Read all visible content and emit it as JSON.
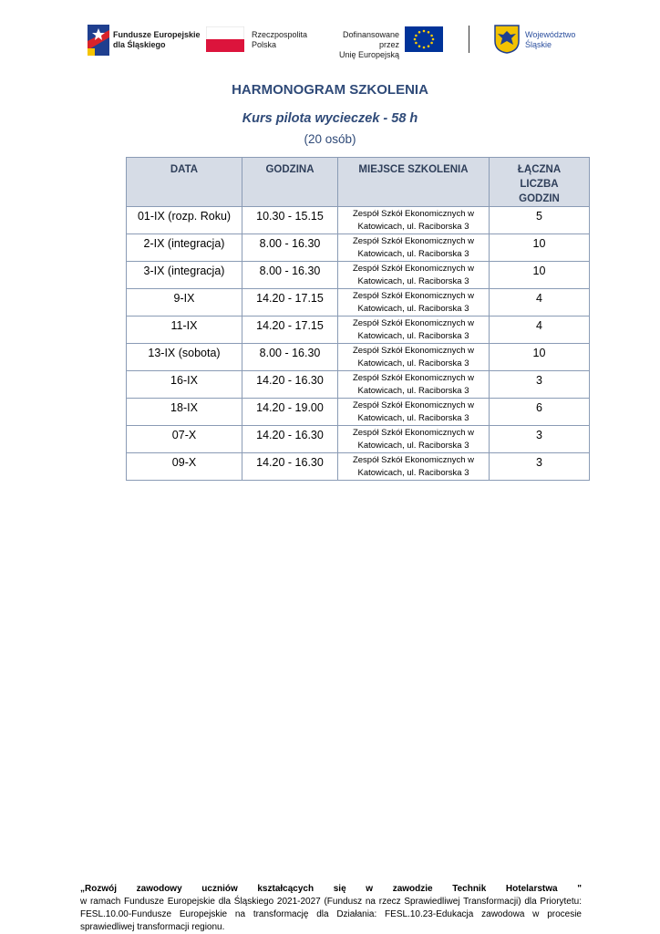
{
  "header": {
    "logo_fe": [
      "Fundusze Europejskie",
      "dla Śląskiego"
    ],
    "logo_rp": [
      "Rzeczpospolita",
      "Polska"
    ],
    "logo_eu": [
      "Dofinansowane przez",
      "Unię Europejską"
    ],
    "logo_slaskie": [
      "Województwo",
      "Śląskie"
    ]
  },
  "title": "HARMONOGRAM SZKOLENIA",
  "subtitle": "Kurs pilota wycieczek - 58 h",
  "note": "(20 osób)",
  "table": {
    "columns": [
      "DATA",
      "GODZINA",
      "MIEJSCE SZKOLENIA",
      "ŁĄCZNA LICZBA GODZIN"
    ],
    "rows": [
      [
        "01-IX (rozp. Roku)",
        "10.30 - 15.15",
        "Zespół Szkół Ekonomicznych w Katowicach, ul. Raciborska 3",
        "5"
      ],
      [
        "2-IX (integracja)",
        "8.00 - 16.30",
        "Zespół Szkół Ekonomicznych w Katowicach, ul. Raciborska 3",
        "10"
      ],
      [
        "3-IX (integracja)",
        "8.00 - 16.30",
        "Zespół Szkół Ekonomicznych w Katowicach, ul. Raciborska 3",
        "10"
      ],
      [
        "9-IX",
        "14.20 - 17.15",
        "Zespół Szkół Ekonomicznych w Katowicach, ul. Raciborska 3",
        "4"
      ],
      [
        "11-IX",
        "14.20 - 17.15",
        "Zespół Szkół Ekonomicznych w Katowicach, ul. Raciborska 3",
        "4"
      ],
      [
        "13-IX (sobota)",
        "8.00 - 16.30",
        "Zespół Szkół Ekonomicznych w Katowicach, ul. Raciborska 3",
        "10"
      ],
      [
        "16-IX",
        "14.20 - 16.30",
        "Zespół Szkół Ekonomicznych w Katowicach, ul. Raciborska 3",
        "3"
      ],
      [
        "18-IX",
        "14.20 - 19.00",
        "Zespół Szkół Ekonomicznych w Katowicach, ul. Raciborska 3",
        "6"
      ],
      [
        "07-X",
        "14.20 - 16.30",
        "Zespół Szkół Ekonomicznych w Katowicach, ul. Raciborska 3",
        "3"
      ],
      [
        "09-X",
        "14.20 - 16.30",
        "Zespół Szkół Ekonomicznych w Katowicach, ul. Raciborska 3",
        "3"
      ]
    ]
  },
  "footer": {
    "project": "„Rozwój zawodowy uczniów kształcących się w zawodzie Technik Hotelarstwa \"",
    "text": "w ramach Fundusze Europejskie dla Śląskiego 2021-2027 (Fundusz na rzecz Sprawiedliwej Transformacji) dla Priorytetu: FESL.10.00-Fundusze Europejskie na transformację dla Działania: FESL.10.23-Edukacja zawodowa w procesie sprawiedliwej transformacji regionu."
  }
}
